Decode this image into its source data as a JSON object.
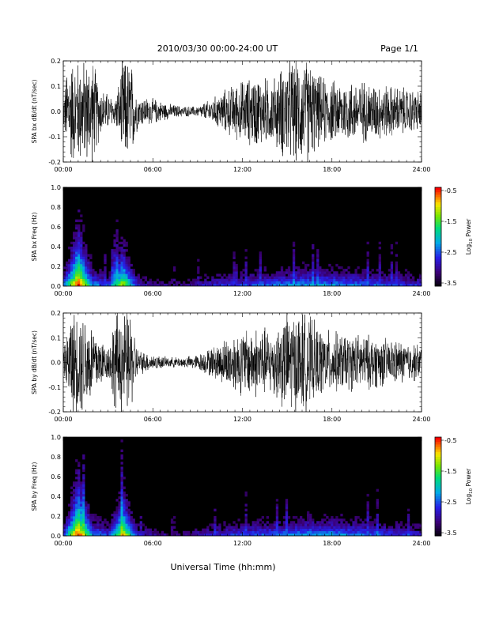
{
  "header": {
    "date_range": "2010/03/30  00:00-24:00 UT",
    "page": "Page 1/1"
  },
  "x_axis_label": "Universal Time (hh:mm)",
  "colorbar": {
    "label": "Log10 Power",
    "ticks": [
      "-0.5",
      "-1.5",
      "-2.5",
      "-3.5"
    ]
  },
  "chart_data": [
    {
      "type": "line",
      "ylabel": "SPA bx dB/dt (nT/sec)",
      "x_ticks": [
        "00:00",
        "06:00",
        "12:00",
        "18:00",
        "24:00"
      ],
      "y_ticks": [
        "0.2",
        "0.1",
        "0.0",
        "-0.1",
        "-0.2"
      ],
      "xlim": [
        0,
        24
      ],
      "ylim": [
        -0.2,
        0.2
      ],
      "envelope": {
        "hours": [
          0,
          0.3,
          0.5,
          1.0,
          1.5,
          2.0,
          2.5,
          3.0,
          3.5,
          4.0,
          4.5,
          5.0,
          6.0,
          7.0,
          8.0,
          9.0,
          10.0,
          11.0,
          12.0,
          13.0,
          14.0,
          15.0,
          15.5,
          16.0,
          16.5,
          17.0,
          18.0,
          19.0,
          20.0,
          21.0,
          22.0,
          23.0,
          24.0
        ],
        "amplitude": [
          0.05,
          0.2,
          0.2,
          0.2,
          0.2,
          0.2,
          0.09,
          0.07,
          0.05,
          0.2,
          0.2,
          0.06,
          0.05,
          0.03,
          0.02,
          0.02,
          0.05,
          0.09,
          0.12,
          0.14,
          0.12,
          0.2,
          0.2,
          0.2,
          0.2,
          0.14,
          0.12,
          0.12,
          0.12,
          0.11,
          0.1,
          0.09,
          0.08
        ]
      }
    },
    {
      "type": "heatmap",
      "ylabel": "SPA bx Freq (Hz)",
      "x_ticks": [
        "00:00",
        "06:00",
        "12:00",
        "18:00",
        "24:00"
      ],
      "y_ticks": [
        "1.0",
        "0.8",
        "0.6",
        "0.4",
        "0.2",
        "0.0"
      ],
      "xlim": [
        0,
        24
      ],
      "ylim": [
        0,
        1.0
      ],
      "zlim": [
        -3.5,
        -0.5
      ],
      "activity": {
        "hours": [
          0,
          1,
          2,
          3,
          4,
          5,
          6,
          8,
          10,
          12,
          14,
          16,
          18,
          20,
          22,
          24
        ],
        "level": [
          0.4,
          1.0,
          0.45,
          0.35,
          0.8,
          0.3,
          0.2,
          0.15,
          0.3,
          0.35,
          0.4,
          0.45,
          0.45,
          0.4,
          0.35,
          0.3
        ]
      }
    },
    {
      "type": "line",
      "ylabel": "SPA by dB/dt (nT/sec)",
      "x_ticks": [
        "00:00",
        "06:00",
        "12:00",
        "18:00",
        "24:00"
      ],
      "y_ticks": [
        "0.2",
        "0.1",
        "0.0",
        "-0.1",
        "-0.2"
      ],
      "xlim": [
        0,
        24
      ],
      "ylim": [
        -0.2,
        0.2
      ],
      "envelope": {
        "hours": [
          0,
          0.3,
          0.5,
          1.0,
          1.5,
          2.0,
          2.5,
          3.0,
          3.5,
          4.0,
          4.5,
          5.0,
          6.0,
          7.0,
          8.0,
          9.0,
          10.0,
          11.0,
          12.0,
          13.0,
          14.0,
          15.0,
          15.5,
          16.0,
          16.5,
          17.0,
          18.0,
          19.0,
          20.0,
          21.0,
          22.0,
          23.0,
          24.0
        ],
        "amplitude": [
          0.04,
          0.12,
          0.2,
          0.2,
          0.2,
          0.15,
          0.1,
          0.06,
          0.2,
          0.2,
          0.2,
          0.05,
          0.03,
          0.02,
          0.02,
          0.03,
          0.06,
          0.1,
          0.13,
          0.14,
          0.13,
          0.2,
          0.2,
          0.2,
          0.18,
          0.14,
          0.12,
          0.11,
          0.11,
          0.1,
          0.09,
          0.08,
          0.07
        ]
      }
    },
    {
      "type": "heatmap",
      "ylabel": "SPA by Freq (Hz)",
      "x_ticks": [
        "00:00",
        "06:00",
        "12:00",
        "18:00",
        "24:00"
      ],
      "y_ticks": [
        "1.0",
        "0.8",
        "0.6",
        "0.4",
        "0.2",
        "0.0"
      ],
      "xlim": [
        0,
        24
      ],
      "ylim": [
        0,
        1.0
      ],
      "zlim": [
        -3.5,
        -0.5
      ],
      "activity": {
        "hours": [
          0,
          1,
          2,
          3,
          4,
          5,
          6,
          8,
          10,
          12,
          14,
          16,
          18,
          20,
          22,
          24
        ],
        "level": [
          0.35,
          1.0,
          0.45,
          0.35,
          0.85,
          0.3,
          0.2,
          0.15,
          0.3,
          0.35,
          0.4,
          0.45,
          0.45,
          0.4,
          0.35,
          0.3
        ]
      }
    }
  ]
}
